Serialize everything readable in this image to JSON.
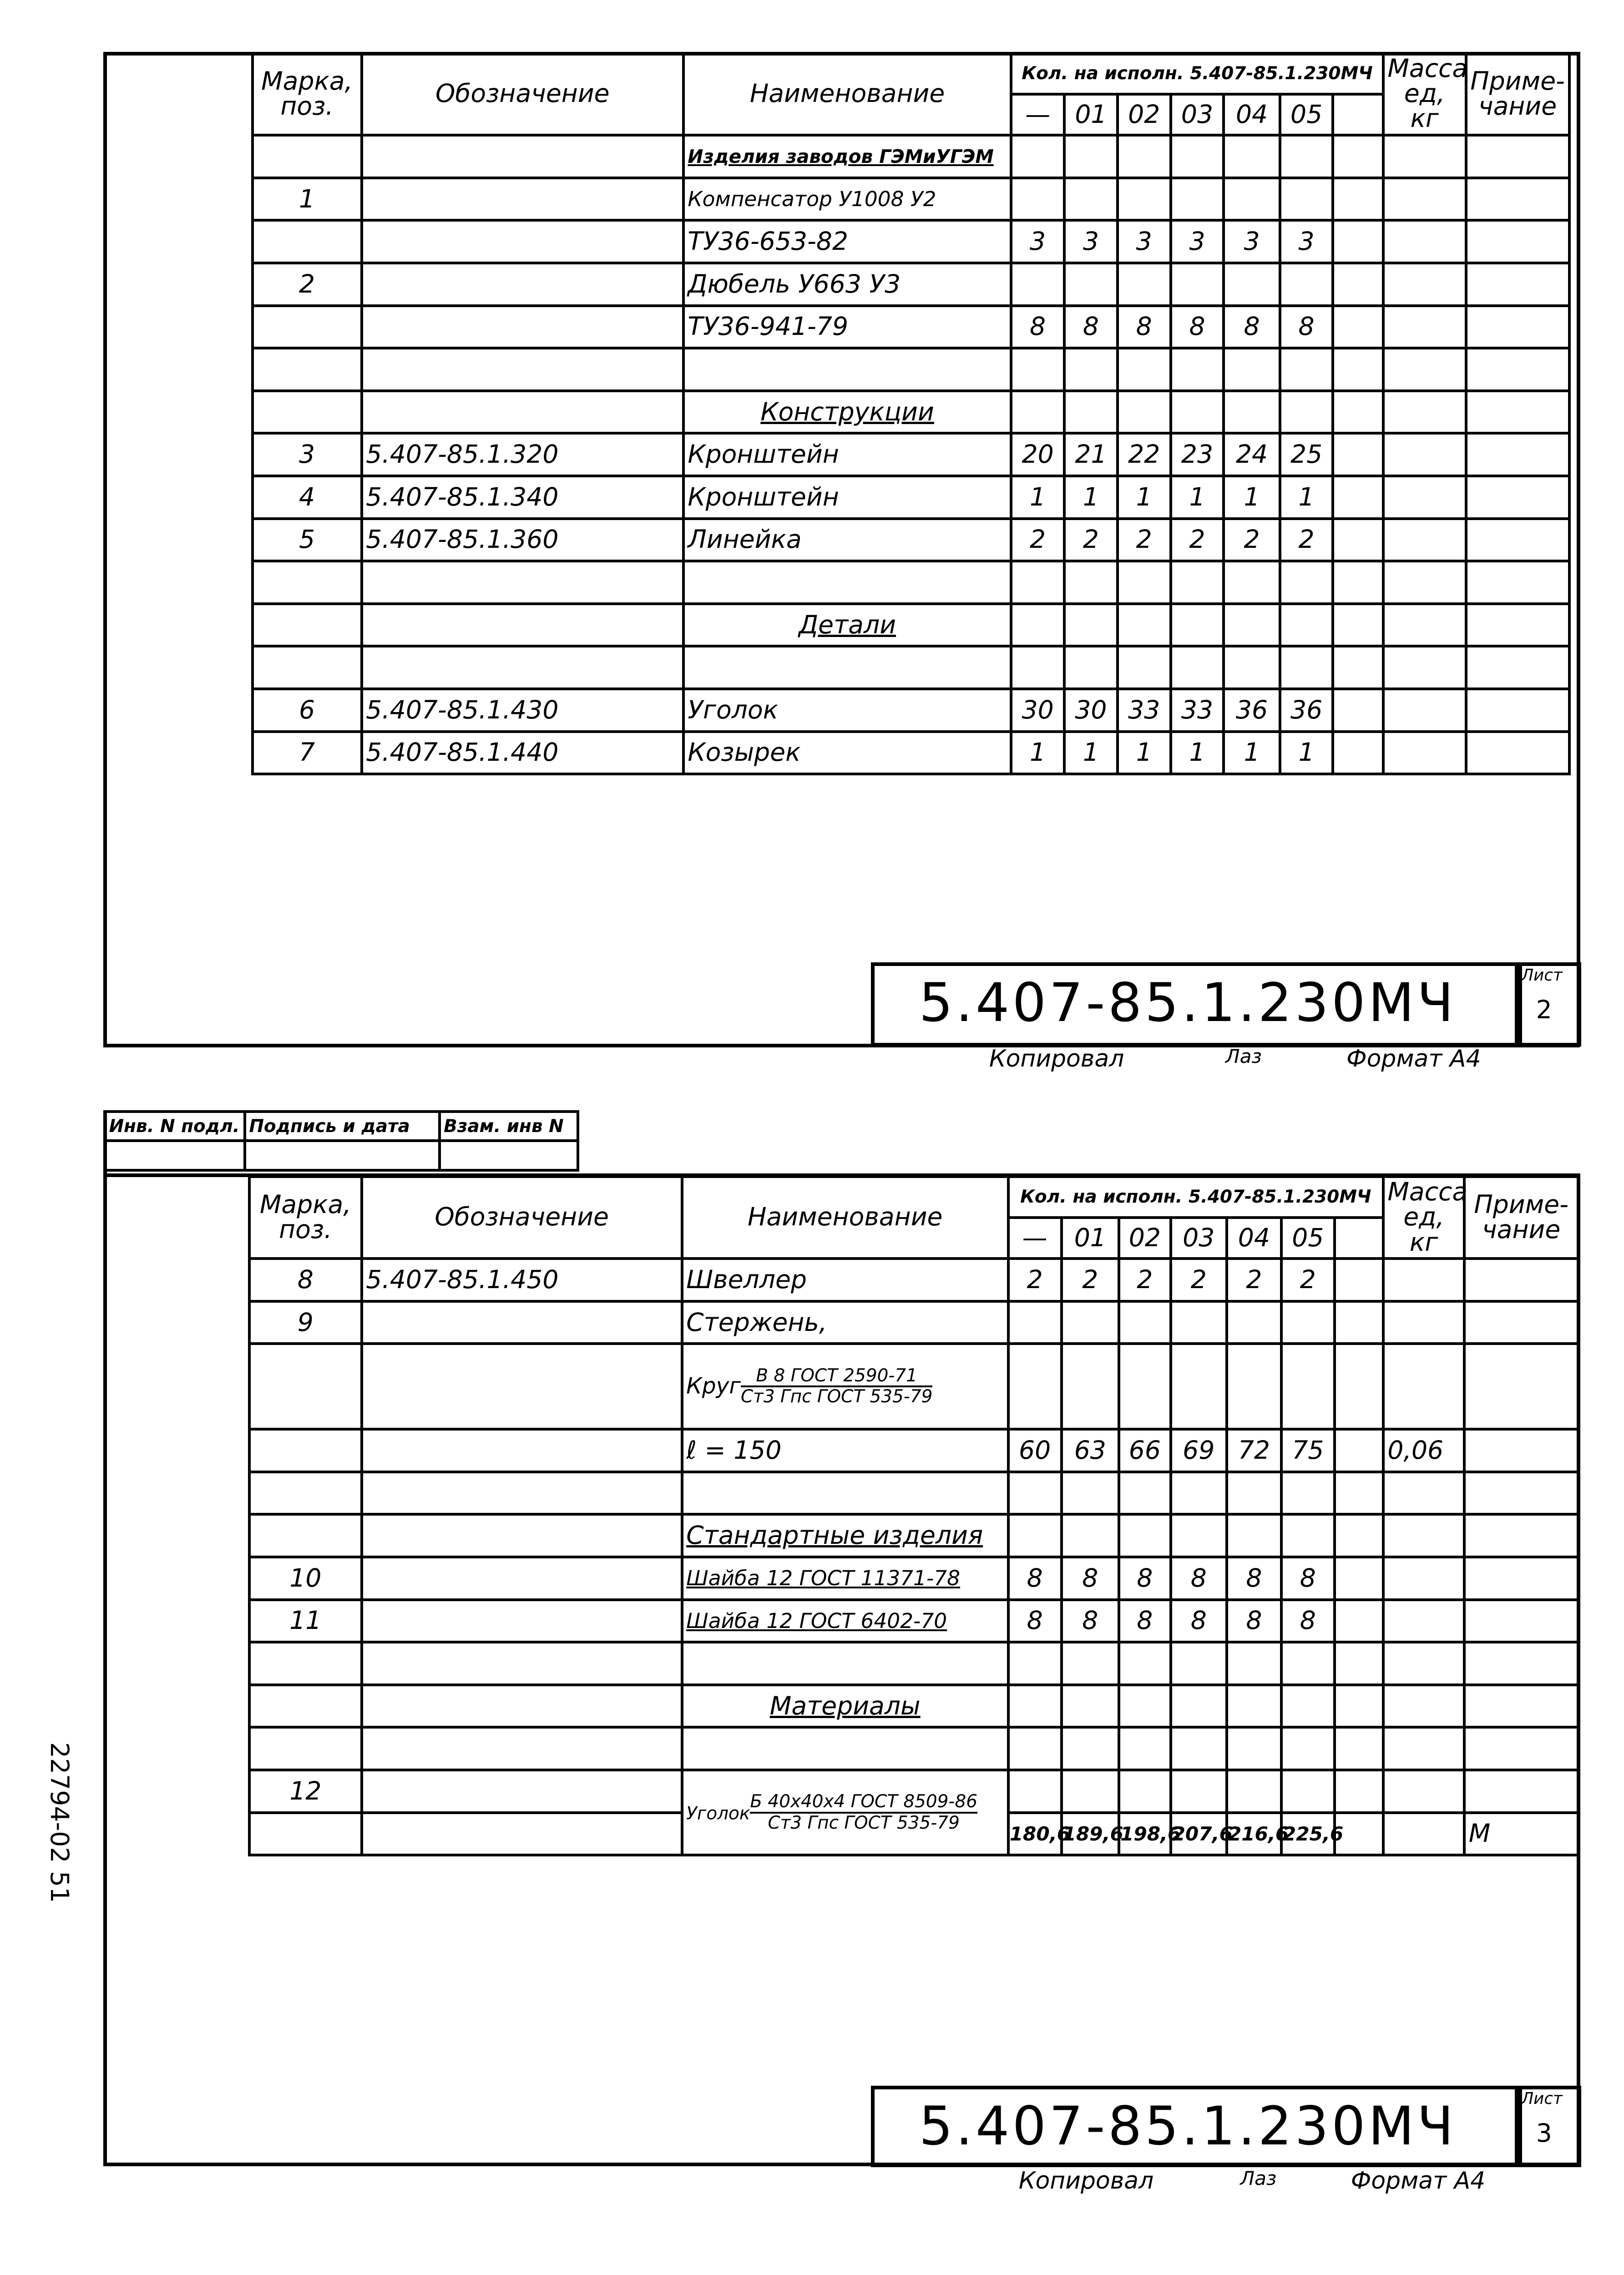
{
  "header": {
    "pos": "Марка, поз.",
    "designation": "Обозначение",
    "name": "Наименование",
    "qty_group": "Кол. на исполн. 5.407-85.1.230МЧ",
    "variants": [
      "—",
      "01",
      "02",
      "03",
      "04",
      "05",
      ""
    ],
    "mass": "Масса ед, кг",
    "note": "Приме- чание"
  },
  "sheet1": {
    "rows": [
      {
        "pos": "",
        "des": "",
        "name": "Изделия заводов ГЭМиУГЭМ",
        "style": "hs-u",
        "q": []
      },
      {
        "pos": "1",
        "des": "",
        "name": "Компенсатор У1008 У2",
        "style": "small",
        "q": []
      },
      {
        "pos": "",
        "des": "",
        "name": "ТУ36-653-82",
        "q": [
          "3",
          "3",
          "3",
          "3",
          "3",
          "3"
        ]
      },
      {
        "pos": "2",
        "des": "",
        "name": "Дюбель У663 У3",
        "q": []
      },
      {
        "pos": "",
        "des": "",
        "name": "ТУ36-941-79",
        "q": [
          "8",
          "8",
          "8",
          "8",
          "8",
          "8"
        ]
      },
      {
        "pos": "",
        "des": "",
        "name": "",
        "q": []
      },
      {
        "pos": "",
        "des": "",
        "name": "Конструкции",
        "style": "center-u",
        "q": []
      },
      {
        "pos": "3",
        "des": "5.407-85.1.320",
        "name": "Кронштейн",
        "q": [
          "20",
          "21",
          "22",
          "23",
          "24",
          "25"
        ]
      },
      {
        "pos": "4",
        "des": "5.407-85.1.340",
        "name": "Кронштейн",
        "q": [
          "1",
          "1",
          "1",
          "1",
          "1",
          "1"
        ]
      },
      {
        "pos": "5",
        "des": "5.407-85.1.360",
        "name": "Линейка",
        "q": [
          "2",
          "2",
          "2",
          "2",
          "2",
          "2"
        ]
      },
      {
        "pos": "",
        "des": "",
        "name": "",
        "q": []
      },
      {
        "pos": "",
        "des": "",
        "name": "Детали",
        "style": "center-u",
        "q": []
      },
      {
        "pos": "",
        "des": "",
        "name": "",
        "q": []
      },
      {
        "pos": "6",
        "des": "5.407-85.1.430",
        "name": "Уголок",
        "q": [
          "30",
          "30",
          "33",
          "33",
          "36",
          "36"
        ]
      },
      {
        "pos": "7",
        "des": "5.407-85.1.440",
        "name": "Козырек",
        "q": [
          "1",
          "1",
          "1",
          "1",
          "1",
          "1"
        ]
      }
    ],
    "stamp_code": "5.407-85.1.230МЧ",
    "sheet_label": "Лист",
    "sheet_number": "2",
    "copied": "Копировал",
    "signature": "Лаз",
    "format": "Формат А4"
  },
  "sheet2": {
    "inv_labels": [
      "Инв. N подл.",
      "Подпись и дата",
      "Взам. инв N"
    ],
    "rows": [
      {
        "pos": "8",
        "des": "5.407-85.1.450",
        "name": "Швеллер",
        "q": [
          "2",
          "2",
          "2",
          "2",
          "2",
          "2"
        ]
      },
      {
        "pos": "9",
        "des": "",
        "name": "Стержень,",
        "q": []
      },
      {
        "pos": "",
        "des": "",
        "name": "Круг",
        "frac": [
          "В 8 ГОСТ 2590-71",
          "Ст3 Гпс ГОСТ 535-79"
        ],
        "tall": true,
        "q": []
      },
      {
        "pos": "",
        "des": "",
        "name": "ℓ = 150",
        "q": [
          "60",
          "63",
          "66",
          "69",
          "72",
          "75"
        ],
        "mass": "0,06"
      },
      {
        "pos": "",
        "des": "",
        "name": "",
        "q": []
      },
      {
        "pos": "",
        "des": "",
        "name": "Стандартные изделия",
        "style": "u",
        "q": []
      },
      {
        "pos": "10",
        "des": "",
        "name": "Шайба 12 ГОСТ 11371-78",
        "style": "u-small",
        "q": [
          "8",
          "8",
          "8",
          "8",
          "8",
          "8"
        ]
      },
      {
        "pos": "11",
        "des": "",
        "name": "Шайба 12 ГОСТ 6402-70",
        "style": "u-small",
        "q": [
          "8",
          "8",
          "8",
          "8",
          "8",
          "8"
        ]
      },
      {
        "pos": "",
        "des": "",
        "name": "",
        "q": []
      },
      {
        "pos": "",
        "des": "",
        "name": "Материалы",
        "style": "center-u",
        "q": []
      },
      {
        "pos": "",
        "des": "",
        "name": "",
        "q": []
      },
      {
        "pos": "12",
        "des": "",
        "name": "Уголок",
        "frac": [
          "Б 40x40x4 ГОСТ 8509-86",
          "Ст3 Гпс ГОСТ 535-79"
        ],
        "fracspan": true,
        "q": []
      },
      {
        "pos": "",
        "des": "",
        "name": "",
        "q": [
          "180,6",
          "189,6",
          "198,6",
          "207,6",
          "216,6",
          "225,6"
        ],
        "qsmall": true,
        "note": "М",
        "skipname": true
      }
    ],
    "stamp_code": "5.407-85.1.230МЧ",
    "sheet_label": "Лист",
    "sheet_number": "3",
    "copied": "Копировал",
    "signature": "Лаз",
    "format": "Формат А4"
  },
  "side_stamp": "22794-02   51"
}
